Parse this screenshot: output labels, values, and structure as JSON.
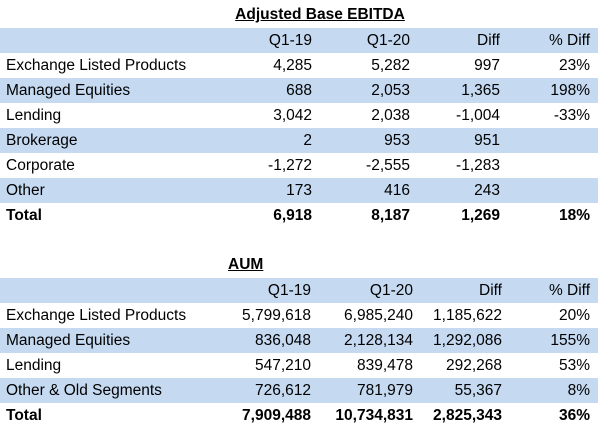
{
  "tables": [
    {
      "title": "Adjusted Base EBITDA",
      "columns": [
        "Q1-19",
        "Q1-20",
        "Diff",
        "% Diff"
      ],
      "rows": [
        [
          "Exchange Listed Products",
          "4,285",
          "5,282",
          "997",
          "23%"
        ],
        [
          "Managed Equities",
          "688",
          "2,053",
          "1,365",
          "198%"
        ],
        [
          "Lending",
          "3,042",
          "2,038",
          "-1,004",
          "-33%"
        ],
        [
          "Brokerage",
          "2",
          "953",
          "951",
          null
        ],
        [
          "Corporate",
          "-1,272",
          "-2,555",
          "-1,283",
          null
        ],
        [
          "Other",
          "173",
          "416",
          "243",
          null
        ]
      ],
      "total": [
        "Total",
        "6,918",
        "8,187",
        "1,269",
        "18%"
      ]
    },
    {
      "title": "AUM",
      "columns": [
        "Q1-19",
        "Q1-20",
        "Diff",
        "% Diff"
      ],
      "rows": [
        [
          "Exchange Listed Products",
          "5,799,618",
          "6,985,240",
          "1,185,622",
          "20%"
        ],
        [
          "Managed Equities",
          "836,048",
          "2,128,134",
          "1,292,086",
          "155%"
        ],
        [
          "Lending",
          "547,210",
          "839,478",
          "292,268",
          "53%"
        ],
        [
          "Other & Old Segments",
          "726,612",
          "781,979",
          "55,367",
          "8%"
        ]
      ],
      "total": [
        "Total",
        "7,909,488",
        "10,734,831",
        "2,825,343",
        "36%"
      ]
    }
  ]
}
